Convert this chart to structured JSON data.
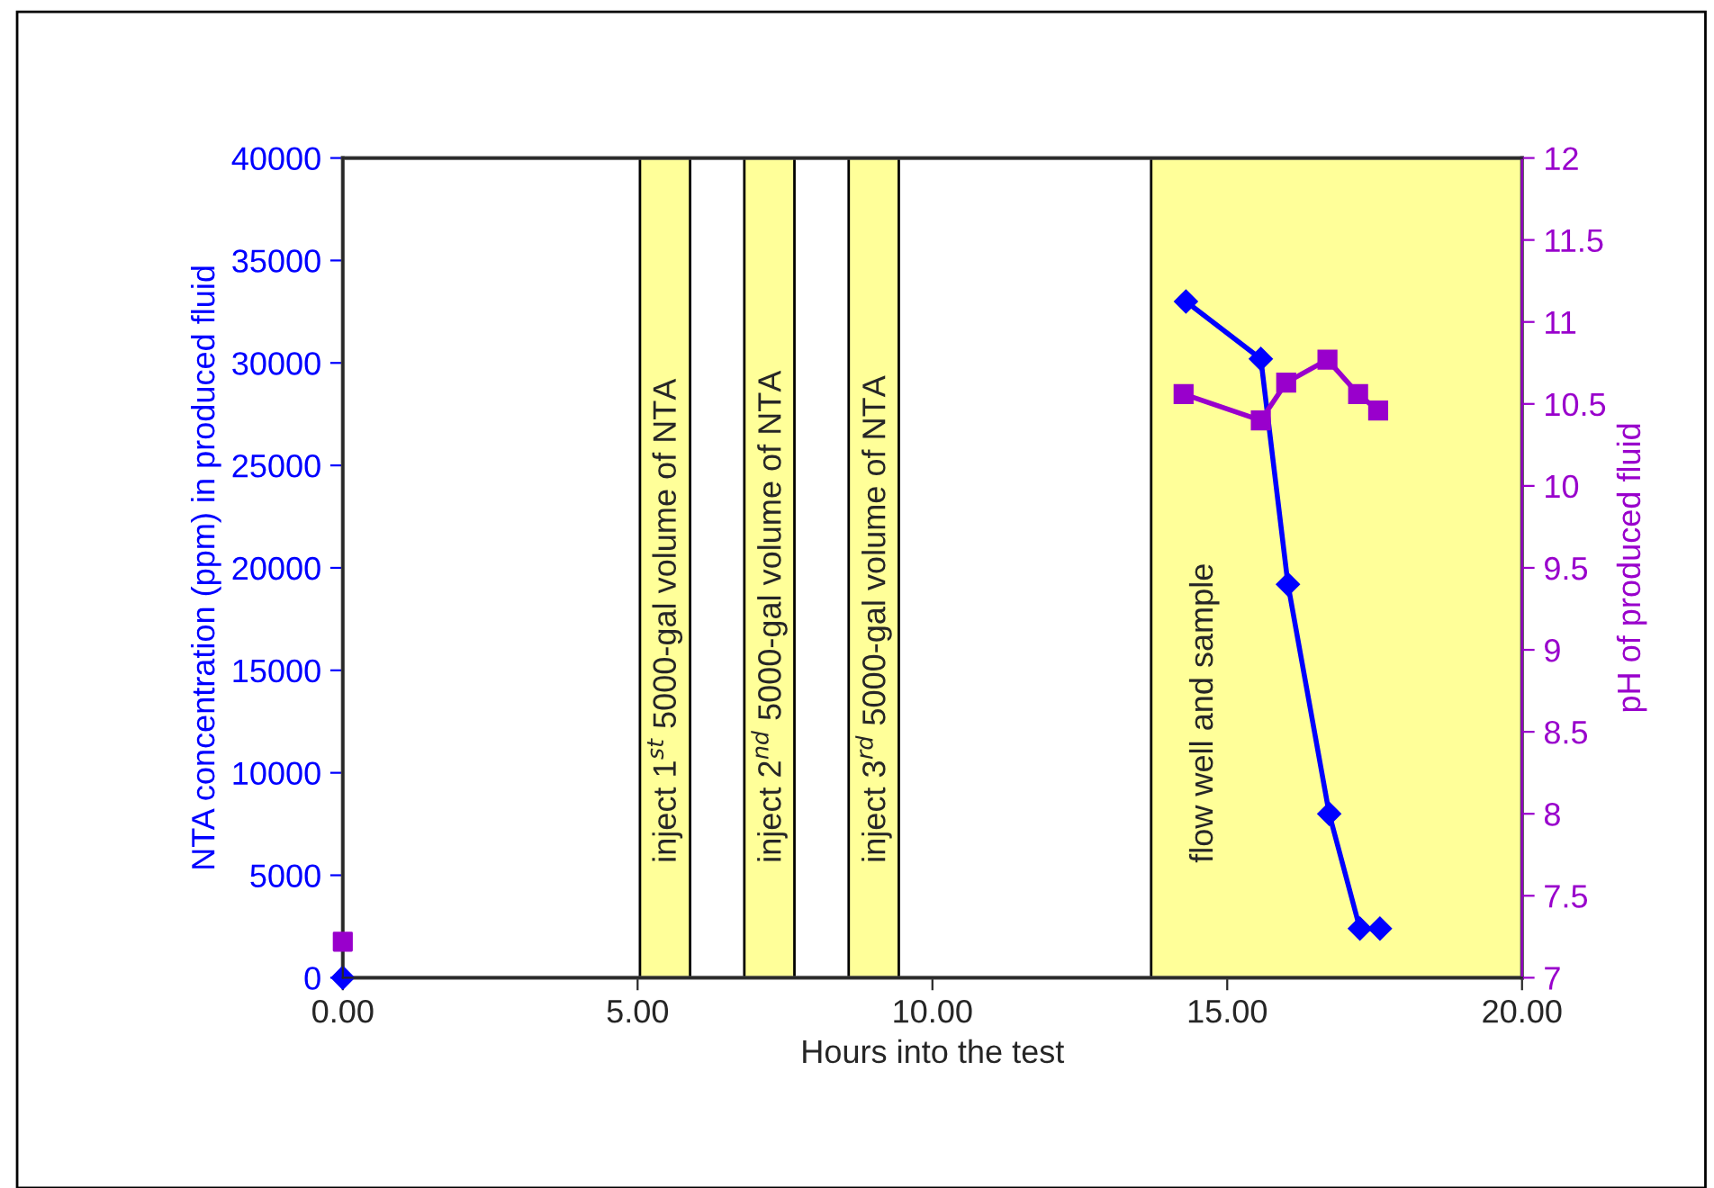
{
  "chart_data": {
    "type": "line",
    "xlabel": "Hours into the test",
    "ylabel": "NTA concentration (ppm) in produced fluid",
    "y2label": "pH of produced fluid",
    "xlim": [
      0,
      20
    ],
    "xticks": [
      {
        "value": 0,
        "label": "0.00"
      },
      {
        "value": 5,
        "label": "5.00"
      },
      {
        "value": 10,
        "label": "10.00"
      },
      {
        "value": 15,
        "label": "15.00"
      },
      {
        "value": 20,
        "label": "20.00"
      }
    ],
    "ylim": [
      0,
      40000
    ],
    "yticks": [
      0,
      5000,
      10000,
      15000,
      20000,
      25000,
      30000,
      35000,
      40000
    ],
    "y2lim": [
      7,
      12
    ],
    "y2ticks": [
      7,
      7.5,
      8,
      8.5,
      9,
      9.5,
      10,
      10.5,
      11,
      11.5,
      12
    ],
    "series": [
      {
        "type": "scatter",
        "color": "#0000ff",
        "marker": "diamond",
        "x": [
          0
        ],
        "values": [
          0
        ]
      },
      {
        "color": "#0000ff",
        "marker": "diamond",
        "x": [
          14.3,
          15.57,
          16.03,
          16.73,
          17.25,
          17.59
        ],
        "values": [
          33000,
          30200,
          19200,
          8000,
          2400,
          2400
        ]
      },
      {
        "type": "scatter",
        "color": "#9900cc",
        "marker": "square",
        "axis": "y2",
        "x": [
          0
        ],
        "values": [
          7.22
        ]
      },
      {
        "color": "#9900cc",
        "marker": "square",
        "axis": "y2",
        "x": [
          14.26,
          15.57,
          16.0,
          16.7,
          17.22,
          17.56
        ],
        "values": [
          10.56,
          10.4,
          10.63,
          10.77,
          10.56,
          10.46
        ]
      }
    ],
    "bands": [
      {
        "axis": "x",
        "from": 5.04,
        "to": 5.89,
        "label": "inject 1$^{st}$ 5000-gal volume of NTA",
        "color": "#ffff99"
      },
      {
        "axis": "x",
        "from": 6.81,
        "to": 7.66,
        "label": "inject 2$^{nd}$ 5000-gal volume of NTA",
        "color": "#ffff99"
      },
      {
        "axis": "x",
        "from": 8.58,
        "to": 9.43,
        "label": "inject 3$^{rd}$ 5000-gal volume of NTA",
        "color": "#ffff99"
      },
      {
        "axis": "x",
        "from": 13.71,
        "to": 20,
        "label": "flow well and sample",
        "color": "#ffff99"
      }
    ],
    "grid": false,
    "legend": false
  }
}
